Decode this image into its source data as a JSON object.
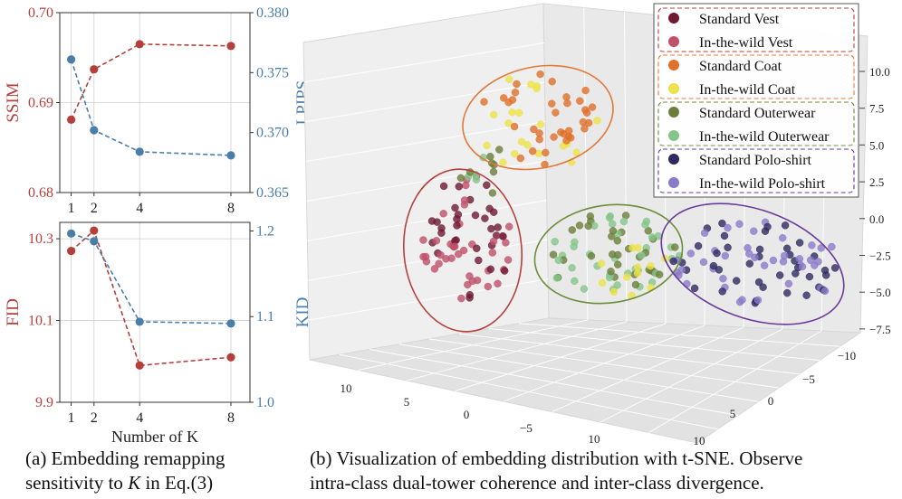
{
  "chart_data": [
    {
      "type": "line",
      "panel": "top-left",
      "x": [
        1,
        2,
        4,
        8
      ],
      "xticks": [
        "1",
        "2",
        "4",
        "8"
      ],
      "series": [
        {
          "name": "SSIM",
          "axis": "left",
          "color": "#b5403b",
          "style": "dashed",
          "values": [
            0.6881,
            0.6937,
            0.6965,
            0.6963
          ]
        },
        {
          "name": "LPIPS",
          "axis": "right",
          "color": "#4a7ea8",
          "style": "dashed",
          "values": [
            0.3761,
            0.3702,
            0.3684,
            0.3681
          ]
        }
      ],
      "ylabel_left": "SSIM",
      "ylabel_right": "LPIPS",
      "ylim_left": [
        0.68,
        0.7
      ],
      "ylim_right": [
        0.365,
        0.38
      ],
      "yticks_left": [
        "0.68",
        "0.69",
        "0.70"
      ],
      "yticks_right": [
        "0.365",
        "0.370",
        "0.375",
        "0.380"
      ]
    },
    {
      "type": "line",
      "panel": "bottom-left",
      "x": [
        1,
        2,
        4,
        8
      ],
      "xticks": [
        "1",
        "2",
        "4",
        "8"
      ],
      "xlabel": "Number of K",
      "series": [
        {
          "name": "FID",
          "axis": "left",
          "color": "#b5403b",
          "style": "dashed",
          "values": [
            10.27,
            10.32,
            9.99,
            10.01
          ]
        },
        {
          "name": "KID",
          "axis": "right",
          "color": "#4a7ea8",
          "style": "dashed",
          "values": [
            1.197,
            1.188,
            1.094,
            1.092
          ]
        }
      ],
      "ylabel_left": "FID",
      "ylabel_right": "KID",
      "ylim_left": [
        9.9,
        10.34
      ],
      "ylim_right": [
        1.0,
        1.21
      ],
      "yticks_left": [
        "9.9",
        "10.1",
        "10.3"
      ],
      "yticks_right": [
        "1.0",
        "1.1",
        "1.2"
      ]
    },
    {
      "type": "scatter",
      "panel": "right",
      "projection": "3d",
      "method": "t-SNE",
      "axes": {
        "x": {
          "ticks": [
            "10",
            "5",
            "0",
            "−5",
            "10"
          ]
        },
        "y": {
          "ticks": [
            "−10",
            "−5",
            "0",
            "5",
            "10"
          ]
        },
        "z": {
          "ticks": [
            "10.0",
            "7.5",
            "5.0",
            "2.5",
            "0.0",
            "−2.5",
            "−5.0",
            "−7.5"
          ]
        }
      },
      "legend": [
        {
          "label": "Standard  Vest",
          "color": "#6e1a33",
          "group": "vest"
        },
        {
          "label": "In-the-wild  Vest",
          "color": "#c0506a",
          "group": "vest"
        },
        {
          "label": "Standard  Coat",
          "color": "#e0702a",
          "group": "coat"
        },
        {
          "label": "In-the-wild  Coat",
          "color": "#ede24a",
          "group": "coat"
        },
        {
          "label": "Standard Outerwear",
          "color": "#6b7e3a",
          "group": "outer"
        },
        {
          "label": "In-the-wild Outerwear",
          "color": "#84c68a",
          "group": "outer"
        },
        {
          "label": "Standard Polo-shirt",
          "color": "#2e2a60",
          "group": "polo"
        },
        {
          "label": "In-the-wild Polo-shirt",
          "color": "#8a7ac8",
          "group": "polo"
        }
      ],
      "group_colors": {
        "vest": "#b5403b",
        "coat": "#e07a3a",
        "outer": "#6b8e3a",
        "polo": "#6a3a9a"
      },
      "legend_position": "top-right"
    }
  ],
  "captions": {
    "left_line1": "(a) Embedding remapping",
    "left_line2_prefix": "sensitivity to ",
    "left_line2_var": "K",
    "left_line2_suffix": " in Eq.(3)",
    "right_line1": "(b) Visualization of embedding distribution with t-SNE. Observe",
    "right_line2": "intra-class dual-tower coherence and inter-class divergence."
  }
}
